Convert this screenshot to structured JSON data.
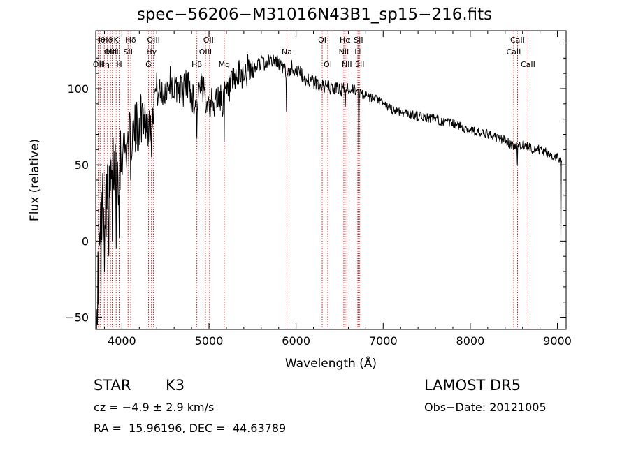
{
  "chart_data": {
    "type": "line",
    "title": "spec−56206−M31016N43B1_sp15−216.fits",
    "xlabel": "Wavelength (Å)",
    "ylabel": "Flux (relative)",
    "xlim": [
      3700,
      9100
    ],
    "ylim": [
      -58,
      138
    ],
    "xticks": [
      4000,
      5000,
      6000,
      7000,
      8000,
      9000
    ],
    "yticks": [
      -50,
      0,
      50,
      100
    ],
    "grid": false,
    "line_color": "#000000",
    "marker_color": "#cc0000",
    "spectrum": {
      "x": [
        3710,
        3740,
        3770,
        3800,
        3850,
        3900,
        3950,
        4000,
        4050,
        4100,
        4150,
        4200,
        4250,
        4300,
        4350,
        4400,
        4450,
        4500,
        4550,
        4600,
        4650,
        4700,
        4750,
        4800,
        4850,
        4900,
        4950,
        5000,
        5050,
        5100,
        5150,
        5200,
        5250,
        5300,
        5350,
        5400,
        5450,
        5500,
        5550,
        5600,
        5650,
        5700,
        5750,
        5800,
        5850,
        5900,
        5950,
        6000,
        6050,
        6100,
        6150,
        6200,
        6250,
        6300,
        6350,
        6400,
        6450,
        6500,
        6550,
        6600,
        6650,
        6700,
        6750,
        6800,
        6850,
        6900,
        6950,
        7000,
        7100,
        7200,
        7300,
        7400,
        7500,
        7600,
        7700,
        7800,
        7900,
        8000,
        8100,
        8200,
        8300,
        8400,
        8500,
        8600,
        8700,
        8800,
        8900,
        9000,
        9050
      ],
      "y": [
        -35,
        -10,
        20,
        30,
        25,
        50,
        45,
        60,
        62,
        68,
        72,
        78,
        85,
        75,
        90,
        100,
        95,
        100,
        105,
        98,
        102,
        98,
        105,
        95,
        90,
        100,
        96,
        92,
        88,
        95,
        92,
        96,
        100,
        105,
        108,
        110,
        112,
        110,
        115,
        118,
        115,
        120,
        118,
        117,
        113,
        110,
        114,
        112,
        110,
        106,
        106,
        104,
        103,
        102,
        101,
        100,
        100,
        100,
        99,
        99,
        100,
        98,
        97,
        95,
        94,
        93,
        92,
        90,
        86,
        85,
        83,
        82,
        81,
        80,
        78,
        77,
        75,
        73,
        71,
        70,
        68,
        66,
        62,
        63,
        61,
        60,
        57,
        55,
        54
      ],
      "dips": [
        {
          "x": 3720,
          "y": -55
        },
        {
          "x": 3760,
          "y": -45
        },
        {
          "x": 3800,
          "y": -20
        },
        {
          "x": 3850,
          "y": -10
        },
        {
          "x": 3890,
          "y": 0
        },
        {
          "x": 3935,
          "y": -5
        },
        {
          "x": 3970,
          "y": 2
        },
        {
          "x": 4102,
          "y": 40
        },
        {
          "x": 4340,
          "y": 55
        },
        {
          "x": 4861,
          "y": 68
        },
        {
          "x": 5175,
          "y": 65
        },
        {
          "x": 5890,
          "y": 85
        },
        {
          "x": 6563,
          "y": 88
        },
        {
          "x": 6720,
          "y": 58
        },
        {
          "x": 8542,
          "y": 50
        },
        {
          "x": 9040,
          "y": 0
        }
      ]
    },
    "lines": [
      {
        "x": 3727,
        "label": "OII",
        "row": 2
      },
      {
        "x": 3750,
        "label": "Hθ",
        "row": 0
      },
      {
        "x": 3798,
        "label": "Hη",
        "row": 2
      },
      {
        "x": 3835,
        "label": "Hϑ",
        "row": 0
      },
      {
        "x": 3869,
        "label": "OIII",
        "row": 1
      },
      {
        "x": 3889,
        "label": "HeI",
        "row": 1
      },
      {
        "x": 3934,
        "label": "K",
        "row": 0
      },
      {
        "x": 3969,
        "label": "H",
        "row": 2
      },
      {
        "x": 4071,
        "label": "SII",
        "row": 1
      },
      {
        "x": 4102,
        "label": "Hδ",
        "row": 0
      },
      {
        "x": 4305,
        "label": "G",
        "row": 2
      },
      {
        "x": 4340,
        "label": "Hγ",
        "row": 1
      },
      {
        "x": 4363,
        "label": "OIII",
        "row": 0
      },
      {
        "x": 4861,
        "label": "Hβ",
        "row": 2
      },
      {
        "x": 4959,
        "label": "OIII",
        "row": 1
      },
      {
        "x": 5007,
        "label": "OIII",
        "row": 0
      },
      {
        "x": 5175,
        "label": "Mg",
        "row": 2
      },
      {
        "x": 5894,
        "label": "Na",
        "row": 1
      },
      {
        "x": 6300,
        "label": "OI",
        "row": 0
      },
      {
        "x": 6364,
        "label": "OI",
        "row": 2
      },
      {
        "x": 6548,
        "label": "NII",
        "row": 1
      },
      {
        "x": 6563,
        "label": "Hα",
        "row": 0
      },
      {
        "x": 6583,
        "label": "NII",
        "row": 2
      },
      {
        "x": 6708,
        "label": "Li",
        "row": 1
      },
      {
        "x": 6716,
        "label": "SII",
        "row": 0
      },
      {
        "x": 6731,
        "label": "SII",
        "row": 2
      },
      {
        "x": 8498,
        "label": "CaII",
        "row": 1
      },
      {
        "x": 8542,
        "label": "CaII",
        "row": 0
      },
      {
        "x": 8662,
        "label": "CaII",
        "row": 2
      }
    ]
  },
  "info": {
    "class": "STAR",
    "subclass": "K3",
    "survey": "LAMOST DR5",
    "cz": "cz = −4.9 ± 2.9 km/s",
    "obs_date": "Obs−Date: 20121005",
    "radec": "RA =  15.96196, DEC =  44.63789"
  }
}
